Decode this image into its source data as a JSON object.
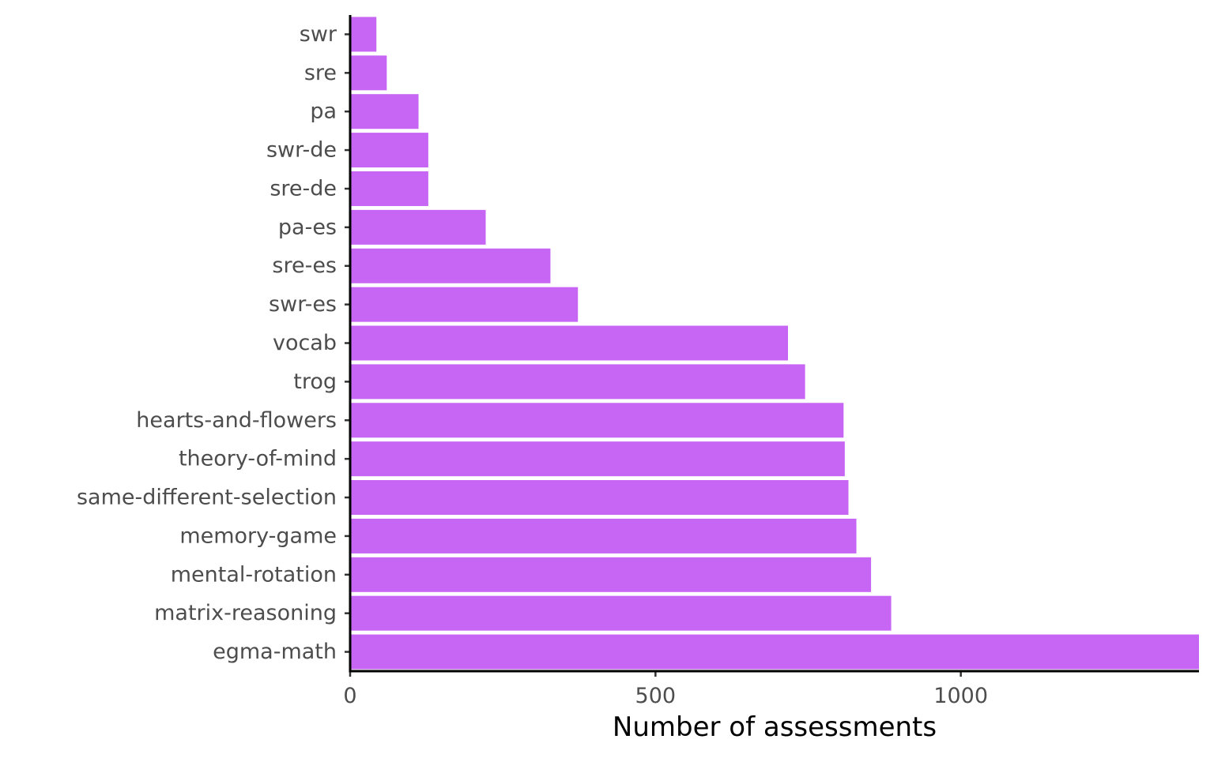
{
  "chart_data": {
    "type": "bar",
    "orientation": "horizontal",
    "title": "",
    "xlabel": "Number of assessments",
    "ylabel": "",
    "categories": [
      "swr",
      "sre",
      "pa",
      "swr-de",
      "sre-de",
      "pa-es",
      "sre-es",
      "swr-es",
      "vocab",
      "trog",
      "hearts-and-flowers",
      "theory-of-mind",
      "same-different-selection",
      "memory-game",
      "mental-rotation",
      "matrix-reasoning",
      "egma-math"
    ],
    "values": [
      43,
      60,
      112,
      128,
      128,
      222,
      328,
      373,
      717,
      745,
      808,
      810,
      816,
      829,
      853,
      886,
      1390
    ],
    "xlim": [
      0,
      1390
    ],
    "xticks": [
      "0",
      "500",
      "1000"
    ],
    "xtick_values": [
      0,
      500,
      1000
    ],
    "grid": false,
    "legend": "none",
    "bar_color": "#C766F4"
  }
}
